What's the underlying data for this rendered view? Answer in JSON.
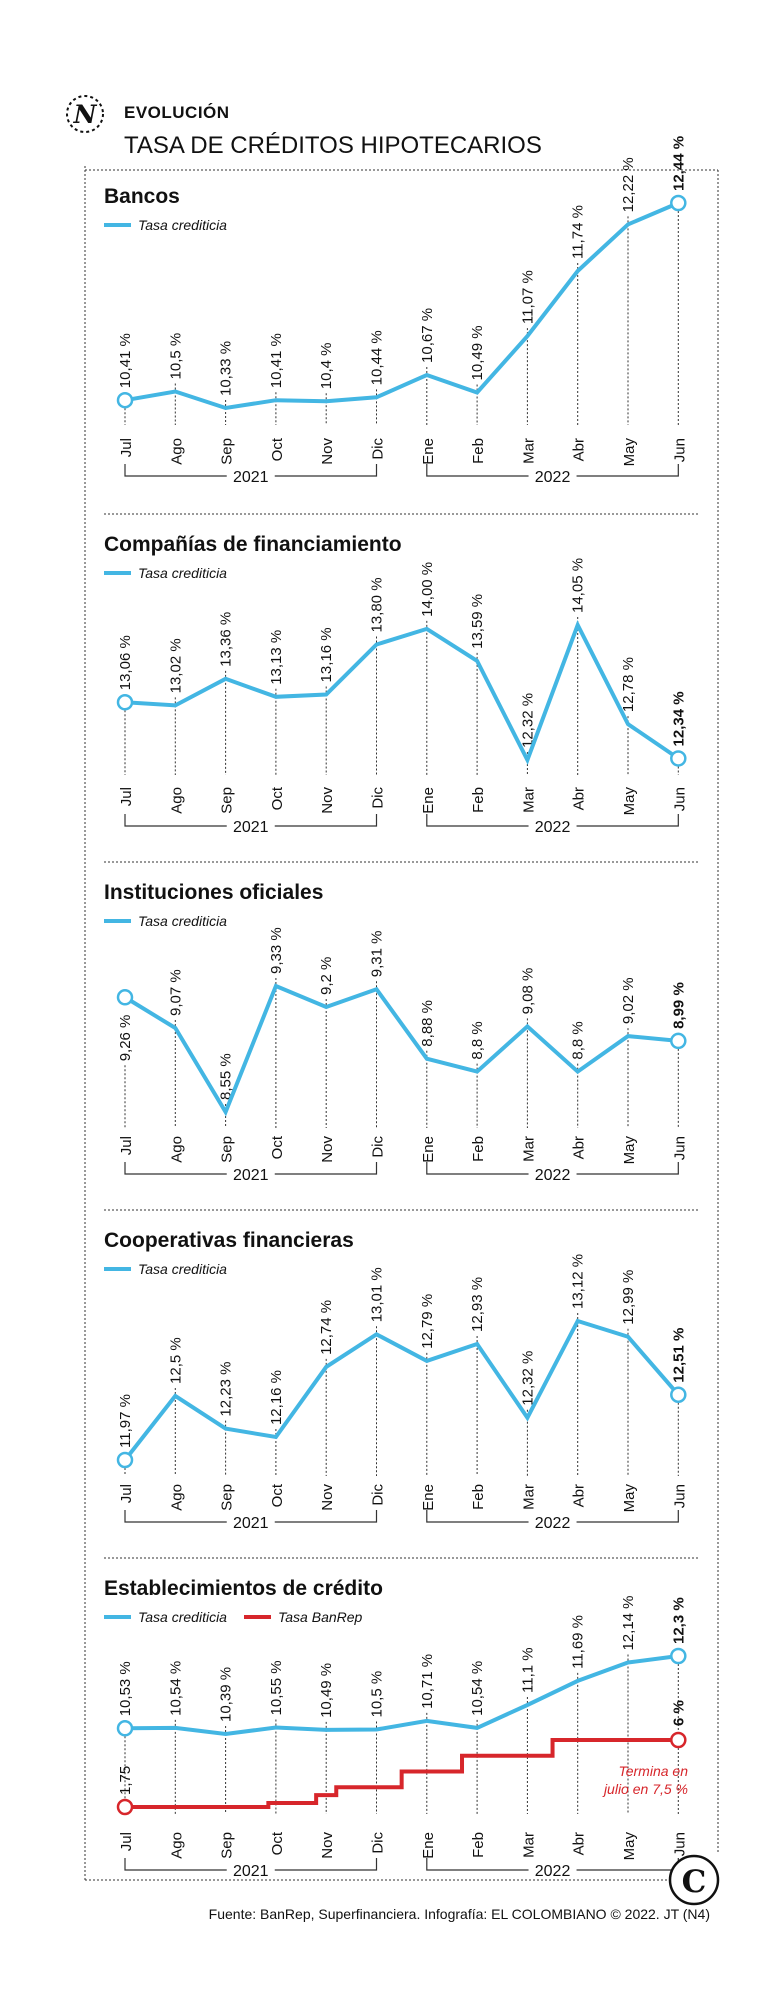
{
  "header": {
    "kicker": "EVOLUCIÓN",
    "title": "TASA DE CRÉDITOS HIPOTECARIOS",
    "logo_letter": "N"
  },
  "colors": {
    "primary": "#43b6e3",
    "banrep": "#d7262b",
    "text": "#111111",
    "guide": "#333333"
  },
  "footer": {
    "source": "Fuente: BanRep, Superfinanciera. Infografía: EL COLOMBIANO © 2022. JT (N4)",
    "logo_letter": "C"
  },
  "chart_data": [
    {
      "type": "line",
      "title": "Bancos",
      "categories": [
        "Jul",
        "Ago",
        "Sep",
        "Oct",
        "Nov",
        "Dic",
        "Ene",
        "Feb",
        "Mar",
        "Abr",
        "May",
        "Jun"
      ],
      "years": [
        {
          "label": "2021"
        },
        {
          "label": "2022"
        }
      ],
      "series": [
        {
          "name": "Tasa crediticia",
          "values": [
            10.41,
            10.5,
            10.33,
            10.41,
            10.4,
            10.44,
            10.67,
            10.49,
            11.07,
            11.74,
            12.22,
            12.44
          ],
          "labels": [
            "10,41 %",
            "10,5 %",
            "10,33 %",
            "10,41 %",
            "10,4 %",
            "10,44 %",
            "10,67 %",
            "10,49 %",
            "11,07 %",
            "11,74 %",
            "12,22 %",
            "12,44 %"
          ]
        }
      ],
      "ylim": [
        10.33,
        12.44
      ]
    },
    {
      "type": "line",
      "title": "Compañías de financiamiento",
      "categories": [
        "Jul",
        "Ago",
        "Sep",
        "Oct",
        "Nov",
        "Dic",
        "Ene",
        "Feb",
        "Mar",
        "Abr",
        "May",
        "Jun"
      ],
      "years": [
        {
          "label": "2021"
        },
        {
          "label": "2022"
        }
      ],
      "series": [
        {
          "name": "Tasa crediticia",
          "values": [
            13.06,
            13.02,
            13.36,
            13.13,
            13.16,
            13.8,
            14.0,
            13.59,
            12.32,
            14.05,
            12.78,
            12.34
          ],
          "labels": [
            "13,06 %",
            "13,02 %",
            "13,36 %",
            "13,13 %",
            "13,16 %",
            "13,80 %",
            "14,00 %",
            "13,59 %",
            "12,32 %",
            "14,05 %",
            "12,78 %",
            "12,34 %"
          ]
        }
      ],
      "ylim": [
        12.32,
        14.05
      ]
    },
    {
      "type": "line",
      "title": "Instituciones oficiales",
      "categories": [
        "Jul",
        "Ago",
        "Sep",
        "Oct",
        "Nov",
        "Dic",
        "Ene",
        "Feb",
        "Mar",
        "Abr",
        "May",
        "Jun"
      ],
      "years": [
        {
          "label": "2021"
        },
        {
          "label": "2022"
        }
      ],
      "series": [
        {
          "name": "Tasa crediticia",
          "values": [
            9.26,
            9.07,
            8.55,
            9.33,
            9.2,
            9.31,
            8.88,
            8.8,
            9.08,
            8.8,
            9.02,
            8.99
          ],
          "labels": [
            "9,26 %",
            "9,07 %",
            "8,55 %",
            "9,33 %",
            "9,2 %",
            "9,31 %",
            "8,88 %",
            "8,8 %",
            "9,08 %",
            "8,8 %",
            "9,02 %",
            "8,99 %"
          ]
        }
      ],
      "ylim": [
        8.55,
        9.33
      ]
    },
    {
      "type": "line",
      "title": "Cooperativas financieras",
      "categories": [
        "Jul",
        "Ago",
        "Sep",
        "Oct",
        "Nov",
        "Dic",
        "Ene",
        "Feb",
        "Mar",
        "Abr",
        "May",
        "Jun"
      ],
      "years": [
        {
          "label": "2021"
        },
        {
          "label": "2022"
        }
      ],
      "series": [
        {
          "name": "Tasa crediticia",
          "values": [
            11.97,
            12.5,
            12.23,
            12.16,
            12.74,
            13.01,
            12.79,
            12.93,
            12.32,
            13.12,
            12.99,
            12.51
          ],
          "labels": [
            "11,97 %",
            "12,5 %",
            "12,23 %",
            "12,16 %",
            "12,74 %",
            "13,01 %",
            "12,79 %",
            "12,93 %",
            "12,32 %",
            "13,12 %",
            "12,99 %",
            "12,51 %"
          ]
        }
      ],
      "ylim": [
        11.97,
        13.12
      ]
    },
    {
      "type": "line",
      "title": "Establecimientos de crédito",
      "categories": [
        "Jul",
        "Ago",
        "Sep",
        "Oct",
        "Nov",
        "Dic",
        "Ene",
        "Feb",
        "Mar",
        "Abr",
        "May",
        "Jun"
      ],
      "years": [
        {
          "label": "2021"
        },
        {
          "label": "2022"
        }
      ],
      "series": [
        {
          "name": "Tasa crediticia",
          "values": [
            10.53,
            10.54,
            10.39,
            10.55,
            10.49,
            10.5,
            10.71,
            10.54,
            11.1,
            11.69,
            12.14,
            12.3
          ],
          "labels": [
            "10,53 %",
            "10,54 %",
            "10,39 %",
            "10,55 %",
            "10,49 %",
            "10,5 %",
            "10,71 %",
            "10,54 %",
            "11,1 %",
            "11,69 %",
            "12,14 %",
            "12,3 %"
          ]
        },
        {
          "name": "Tasa BanRep",
          "style": "step",
          "steps": [
            [
              0,
              1.75
            ],
            [
              2.85,
              2
            ],
            [
              3.8,
              2.5
            ],
            [
              4.2,
              3
            ],
            [
              5.5,
              4
            ],
            [
              6.7,
              5
            ],
            [
              8.5,
              6
            ]
          ],
          "end": 11,
          "labels": [
            {
              "index": 0,
              "text": "1,75"
            },
            {
              "index": 11,
              "text": "6 %"
            }
          ]
        }
      ],
      "ylim": [
        10.39,
        12.3
      ],
      "banrep_ylim": [
        1.75,
        6
      ],
      "note": [
        "Termina en",
        "julio en 7,5 %"
      ]
    }
  ]
}
